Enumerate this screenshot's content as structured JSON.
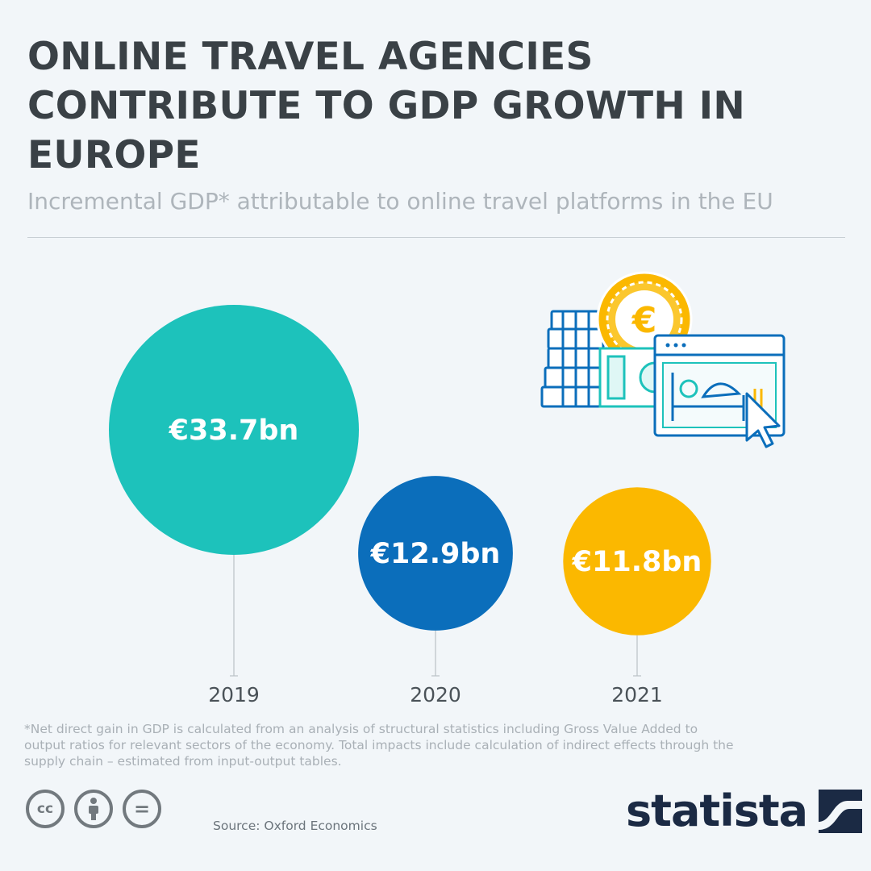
{
  "header": {
    "title": "ONLINE TRAVEL AGENCIES CONTRIBUTE TO GDP GROWTH IN EUROPE",
    "subtitle": "Incremental GDP* attributable to online travel platforms in the EU"
  },
  "chart_data": {
    "type": "bubble",
    "categories": [
      "2019",
      "2020",
      "2021"
    ],
    "values": [
      33.7,
      12.9,
      11.8
    ],
    "labels": [
      "€33.7bn",
      "€12.9bn",
      "€11.8bn"
    ],
    "unit": "€ bn",
    "colors": [
      "#1dc2bb",
      "#0b6ebb",
      "#fbb800"
    ],
    "legend": "none",
    "grid": false
  },
  "footer": {
    "footnote": "*Net direct gain in GDP is calculated from an analysis of structural statistics including Gross Value Added to output ratios for relevant sectors of the economy. Total impacts include calculation of indirect effects through the supply chain – estimated from input-output tables.",
    "source": "Source: Oxford Economics",
    "license_icons": [
      "cc-icon",
      "attribution-icon",
      "no-derivatives-icon"
    ],
    "license_labels": [
      "cc",
      "="
    ],
    "brand": "statista"
  }
}
